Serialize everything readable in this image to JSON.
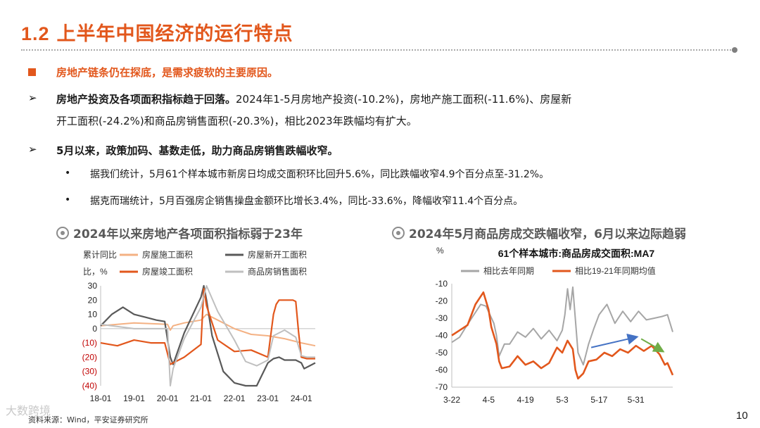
{
  "header": {
    "number": "1.2",
    "title": "上半年中国经济的运行特点"
  },
  "subheading": "房地产链条仍在探底，是需求疲软的主要原因。",
  "points": [
    {
      "bold": "房地产投资及各项面积指标趋于回落。",
      "rest": "2024年1-5月房地产投资(-10.2%)，房地产施工面积(-11.6%)、房屋新",
      "line2": "开工面积(-24.2%)和商品房销售面积(-20.3%)，相比2023年跌幅均有扩大。"
    },
    {
      "bold": "5月以来，政策加码、基数走低，助力商品房销售跌幅收窄。"
    }
  ],
  "sub_bullets": [
    "据我们统计，5月61个样本城市新房日均成交面积环比回升5.6%，同比跌幅收窄4.9个百分点至-31.2%。",
    "据克而瑞统计，5月百强房企销售操盘金额环比增长3.4%，同比-33.6%，降幅收窄11.4个百分点。"
  ],
  "chart_titles": [
    "2024年以来房地产各项面积指标弱于23年",
    "2024年5月商品房成交跌幅收窄，6月以来边际趋弱"
  ],
  "colors": {
    "accent": "#e2571c",
    "series_light": "#f4b183",
    "series_dark": "#595959",
    "series_grey": "#a6a6a6",
    "arrow_up": "#4472c4",
    "arrow_down": "#70ad47"
  },
  "chart_data": [
    {
      "type": "line",
      "title": "2024年以来房地产各项面积指标弱于23年",
      "ylabel": "累计同比，%",
      "ylim": [
        -40,
        30
      ],
      "yticks": [
        "30",
        "20",
        "10",
        "0",
        "(10)",
        "(20)",
        "(30)",
        "(40)"
      ],
      "xticks": [
        "18-01",
        "19-01",
        "20-01",
        "21-01",
        "22-01",
        "23-01",
        "24-01"
      ],
      "x_unit": "months since 2018-01",
      "x_range": [
        0,
        77
      ],
      "series": [
        {
          "name": "房屋施工面积",
          "x": [
            0,
            12,
            24,
            25,
            26,
            30,
            36,
            38,
            42,
            48,
            54,
            60,
            66,
            72,
            77
          ],
          "values": [
            2,
            4,
            3,
            -1,
            2,
            4,
            6,
            10,
            6,
            0,
            -4,
            -5,
            -7,
            -10,
            -12
          ]
        },
        {
          "name": "房屋新开工面积",
          "x": [
            0,
            4,
            8,
            12,
            16,
            20,
            23,
            25,
            26,
            30,
            36,
            37,
            38,
            40,
            44,
            48,
            52,
            56,
            60,
            62,
            64,
            66,
            70,
            72,
            73,
            75,
            77
          ],
          "values": [
            2,
            10,
            15,
            10,
            8,
            6,
            5,
            -20,
            -25,
            -3,
            22,
            32,
            20,
            -5,
            -30,
            -38,
            -42,
            -45,
            -24,
            -21,
            -20,
            -22,
            -22,
            -24,
            -28,
            -26,
            -24
          ]
        },
        {
          "name": "房屋竣工面积",
          "x": [
            0,
            6,
            12,
            18,
            23,
            25,
            30,
            36,
            37,
            38,
            42,
            48,
            54,
            60,
            62,
            63,
            64,
            66,
            69,
            70,
            71,
            72,
            74,
            76,
            77
          ],
          "values": [
            -10,
            -12,
            -8,
            -10,
            -10,
            -25,
            -20,
            -11,
            28,
            16,
            -8,
            -16,
            -15,
            -20,
            10,
            17,
            20,
            20,
            20,
            19,
            -2,
            -20,
            -21,
            -21,
            -21
          ]
        },
        {
          "name": "商品房销售面积",
          "x": [
            0,
            12,
            24,
            25,
            26,
            30,
            36,
            38,
            42,
            48,
            52,
            56,
            60,
            62,
            66,
            70,
            72,
            74,
            77
          ],
          "values": [
            3,
            0,
            0,
            -40,
            -28,
            -7,
            15,
            32,
            12,
            -8,
            -23,
            -26,
            -22,
            -5,
            -1,
            -6,
            -19,
            -20,
            -20
          ]
        }
      ]
    },
    {
      "type": "line",
      "title": "61个样本城市:商品房成交面积:MA7",
      "ylabel": "%",
      "ylim": [
        -70,
        -10
      ],
      "yticks": [
        -10,
        -20,
        -30,
        -40,
        -50,
        -60,
        -70
      ],
      "xticks": [
        "3-22",
        "4-5",
        "4-19",
        "5-3",
        "5-17",
        "5-31"
      ],
      "x_unit": "days since 3-22",
      "x_range": [
        0,
        84
      ],
      "series": [
        {
          "name": "相比去年同期",
          "x": [
            0,
            3,
            5,
            8,
            11,
            13,
            16,
            17,
            18,
            20,
            22,
            25,
            28,
            31,
            34,
            37,
            40,
            42,
            43,
            44,
            45,
            46,
            48,
            50,
            52,
            54,
            56,
            59,
            62,
            65,
            68,
            71,
            74,
            77,
            80,
            82,
            84
          ],
          "values": [
            -44,
            -41,
            -36,
            -29,
            -22,
            -23,
            -33,
            -40,
            -52,
            -45,
            -45,
            -38,
            -41,
            -36,
            -42,
            -37,
            -43,
            -37,
            -28,
            -13,
            -25,
            -12,
            -50,
            -57,
            -45,
            -36,
            -28,
            -22,
            -33,
            -26,
            -32,
            -26,
            -31,
            -30,
            -29,
            -28,
            -38
          ]
        },
        {
          "name": "相比19-21年同期均值",
          "x": [
            0,
            3,
            6,
            9,
            12,
            14,
            15,
            17,
            18,
            19,
            22,
            25,
            28,
            31,
            34,
            37,
            40,
            42,
            44,
            46,
            47,
            48,
            50,
            52,
            55,
            58,
            61,
            64,
            67,
            70,
            73,
            76,
            79,
            81,
            82,
            84
          ],
          "values": [
            -40,
            -37,
            -34,
            -22,
            -15,
            -25,
            -35,
            -45,
            -55,
            -59,
            -58,
            -52,
            -57,
            -55,
            -59,
            -56,
            -47,
            -50,
            -43,
            -48,
            -60,
            -65,
            -62,
            -55,
            -54,
            -50,
            -52,
            -48,
            -50,
            -46,
            -49,
            -46,
            -51,
            -57,
            -56,
            -63
          ]
        }
      ]
    }
  ],
  "footer": {
    "source": "资料来源：Wind，平安证券研究所",
    "page": "10",
    "watermark": "大数跨境"
  }
}
